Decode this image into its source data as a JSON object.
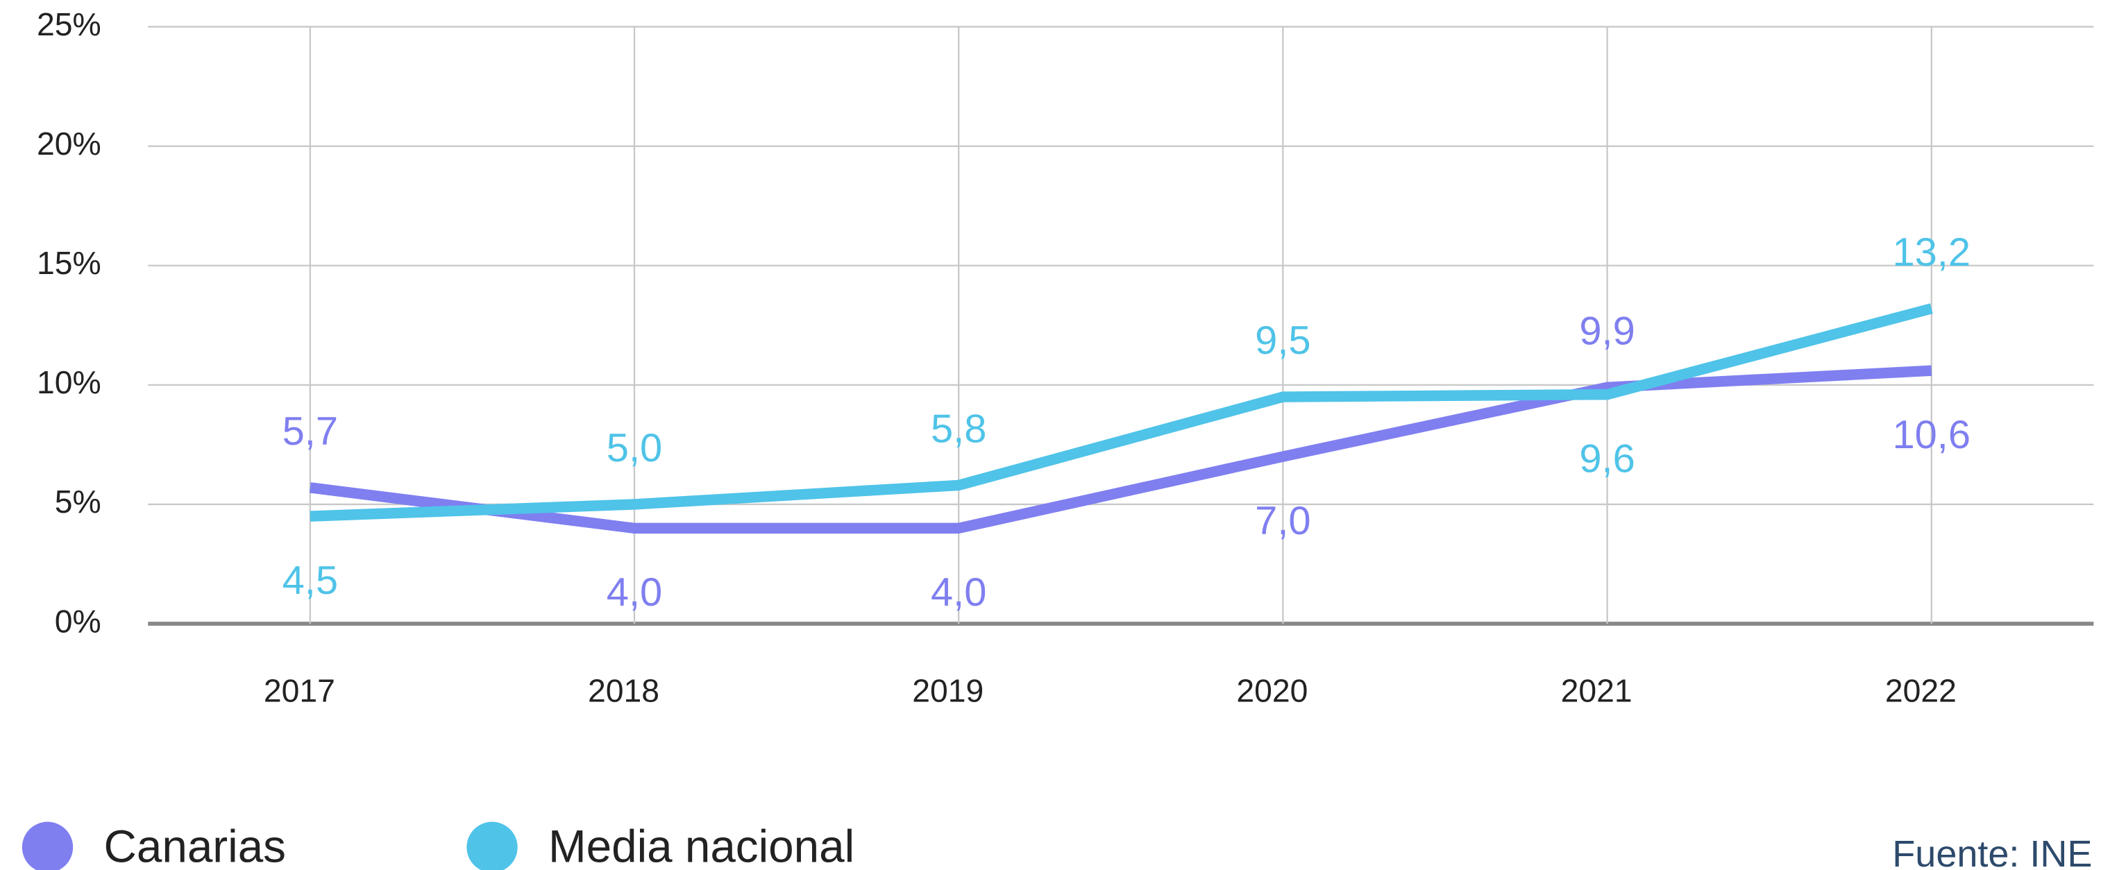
{
  "chart_data": {
    "type": "line",
    "categories": [
      "2017",
      "2018",
      "2019",
      "2020",
      "2021",
      "2022"
    ],
    "series": [
      {
        "name": "Canarias",
        "color": "#7f7ff0",
        "values": [
          5.7,
          4.0,
          4.0,
          7.0,
          9.9,
          10.6
        ],
        "value_labels": [
          "5,7",
          "4,0",
          "4,0",
          "7,0",
          "9,9",
          "10,6"
        ]
      },
      {
        "name": "Media nacional",
        "color": "#4fc3e8",
        "values": [
          4.5,
          5.0,
          5.8,
          9.5,
          9.6,
          13.2
        ],
        "value_labels": [
          "4,5",
          "5,0",
          "5,8",
          "9,5",
          "9,6",
          "13,2"
        ]
      }
    ],
    "ylim": [
      0,
      25
    ],
    "yticks": [
      {
        "value": 0,
        "label": "0%"
      },
      {
        "value": 5,
        "label": "5%"
      },
      {
        "value": 10,
        "label": "10%"
      },
      {
        "value": 15,
        "label": "15%"
      },
      {
        "value": 20,
        "label": "20%"
      },
      {
        "value": 25,
        "label": "25%"
      }
    ],
    "grid": true,
    "source": "Fuente: INE"
  }
}
